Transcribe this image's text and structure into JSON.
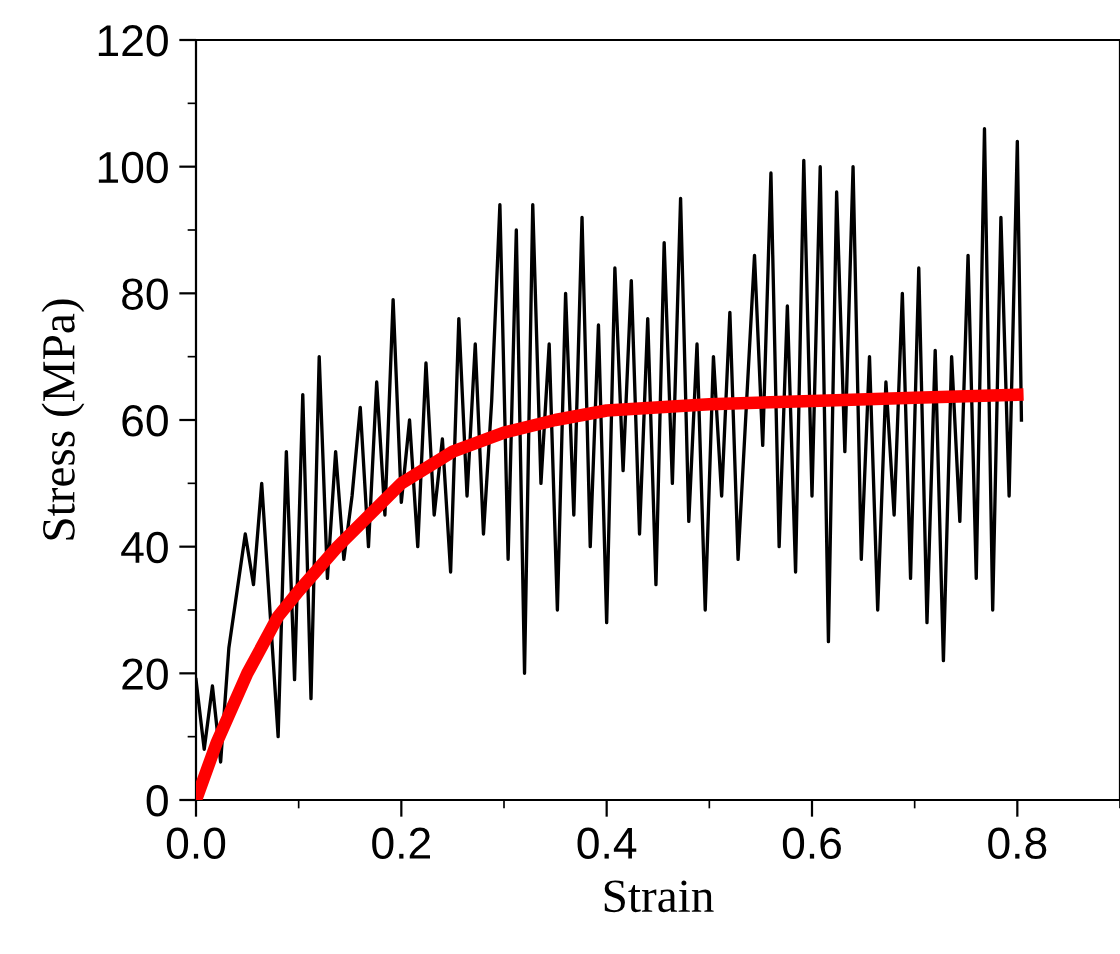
{
  "chart_data": {
    "type": "line",
    "xlabel": "Strain",
    "ylabel": "Stress (MPa)",
    "xlim": [
      0,
      0.9
    ],
    "xticks": [
      {
        "value": 0,
        "label": "0.0"
      },
      0.2,
      0.4,
      0.6,
      0.8
    ],
    "ylim": [
      0,
      120
    ],
    "yticks": [
      0,
      20,
      40,
      60,
      80,
      100,
      120
    ],
    "grid": false,
    "legend": false,
    "series": [
      {
        "color": "#000000",
        "x": [
          0,
          0.008,
          0.016,
          0.024,
          0.032,
          0.04,
          0.048,
          0.056,
          0.064,
          0.072,
          0.08,
          0.088,
          0.096,
          0.104,
          0.112,
          0.12,
          0.128,
          0.136,
          0.144,
          0.152,
          0.16,
          0.168,
          0.176,
          0.184,
          0.192,
          0.2,
          0.208,
          0.216,
          0.224,
          0.232,
          0.24,
          0.248,
          0.256,
          0.264,
          0.272,
          0.28,
          0.288,
          0.296,
          0.304,
          0.312,
          0.32,
          0.328,
          0.336,
          0.344,
          0.352,
          0.36,
          0.368,
          0.376,
          0.384,
          0.392,
          0.4,
          0.408,
          0.416,
          0.424,
          0.432,
          0.44,
          0.448,
          0.456,
          0.464,
          0.472,
          0.48,
          0.488,
          0.496,
          0.504,
          0.512,
          0.52,
          0.528,
          0.544,
          0.552,
          0.56,
          0.568,
          0.576,
          0.584,
          0.592,
          0.6,
          0.608,
          0.616,
          0.624,
          0.632,
          0.64,
          0.648,
          0.656,
          0.664,
          0.672,
          0.68,
          0.688,
          0.696,
          0.704,
          0.712,
          0.72,
          0.728,
          0.736,
          0.744,
          0.752,
          0.76,
          0.768,
          0.776,
          0.784,
          0.792,
          0.8,
          0.804
        ],
        "values": [
          19,
          8,
          18,
          6,
          24,
          33,
          42,
          34,
          50,
          30,
          10,
          55,
          19,
          64,
          16,
          70,
          35,
          55,
          38,
          48,
          62,
          40,
          66,
          45,
          79,
          47,
          60,
          40,
          69,
          45,
          57,
          36,
          76,
          48,
          72,
          42,
          63,
          94,
          38,
          90,
          20,
          94,
          50,
          72,
          30,
          80,
          45,
          92,
          40,
          75,
          28,
          84,
          52,
          82,
          42,
          76,
          34,
          88,
          50,
          95,
          44,
          72,
          30,
          70,
          48,
          77,
          38,
          86,
          56,
          99,
          40,
          78,
          36,
          101,
          48,
          100,
          25,
          96,
          55,
          100,
          38,
          70,
          30,
          66,
          45,
          80,
          35,
          84,
          28,
          71,
          22,
          70,
          44,
          86,
          35,
          106,
          30,
          92,
          48,
          104,
          60
        ]
      },
      {
        "color": "#ff0000",
        "x": [
          0,
          0.02,
          0.05,
          0.08,
          0.1,
          0.138,
          0.2,
          0.25,
          0.3,
          0.35,
          0.4,
          0.5,
          0.6,
          0.7,
          0.8
        ],
        "values": [
          0,
          9,
          20,
          29,
          33,
          40,
          50,
          55,
          58,
          60,
          61.5,
          62.5,
          63,
          63.5,
          64
        ]
      }
    ]
  }
}
